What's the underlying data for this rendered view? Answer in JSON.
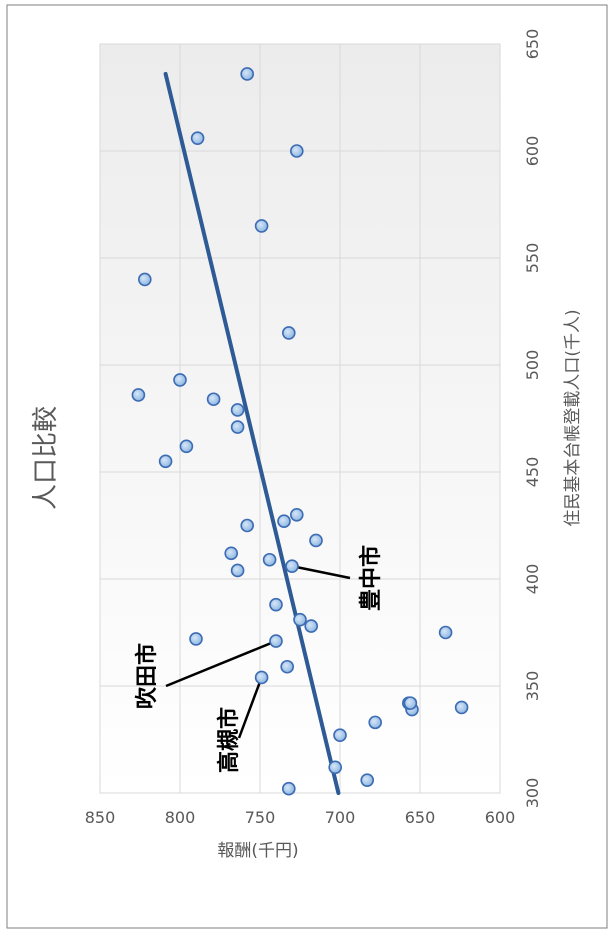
{
  "chart_data": {
    "type": "scatter",
    "title": "人口比較",
    "xlabel": "住民基本台帳登載人口(千人)",
    "ylabel": "報酬(千円)",
    "xlim": [
      300,
      650
    ],
    "ylim": [
      600,
      850
    ],
    "x_ticks": [
      "300",
      "350",
      "400",
      "450",
      "500",
      "550",
      "600",
      "650"
    ],
    "y_ticks": [
      "600",
      "650",
      "700",
      "750",
      "800",
      "850"
    ],
    "grid": true,
    "legend": "none",
    "colors": {
      "trendline": "#2e5b95",
      "marker_fill": "#9dc3e6",
      "marker_edge": "#3d6cb4",
      "grid": "#d9d9d9",
      "text": "#595959"
    },
    "points": [
      {
        "x": 302,
        "y": 732
      },
      {
        "x": 306,
        "y": 683
      },
      {
        "x": 312,
        "y": 703
      },
      {
        "x": 327,
        "y": 700
      },
      {
        "x": 333,
        "y": 678
      },
      {
        "x": 339,
        "y": 655
      },
      {
        "x": 340,
        "y": 624
      },
      {
        "x": 342,
        "y": 657
      },
      {
        "x": 342,
        "y": 656
      },
      {
        "x": 354,
        "y": 749
      },
      {
        "x": 359,
        "y": 733
      },
      {
        "x": 371,
        "y": 740
      },
      {
        "x": 372,
        "y": 790
      },
      {
        "x": 375,
        "y": 634
      },
      {
        "x": 378,
        "y": 718
      },
      {
        "x": 381,
        "y": 725
      },
      {
        "x": 388,
        "y": 740
      },
      {
        "x": 404,
        "y": 764
      },
      {
        "x": 406,
        "y": 730
      },
      {
        "x": 409,
        "y": 744
      },
      {
        "x": 412,
        "y": 768
      },
      {
        "x": 418,
        "y": 715
      },
      {
        "x": 425,
        "y": 758
      },
      {
        "x": 427,
        "y": 735
      },
      {
        "x": 430,
        "y": 727
      },
      {
        "x": 455,
        "y": 809
      },
      {
        "x": 462,
        "y": 796
      },
      {
        "x": 471,
        "y": 764
      },
      {
        "x": 479,
        "y": 764
      },
      {
        "x": 484,
        "y": 779
      },
      {
        "x": 486,
        "y": 826
      },
      {
        "x": 493,
        "y": 800
      },
      {
        "x": 515,
        "y": 732
      },
      {
        "x": 540,
        "y": 822
      },
      {
        "x": 565,
        "y": 749
      },
      {
        "x": 600,
        "y": 727
      },
      {
        "x": 606,
        "y": 789
      },
      {
        "x": 636,
        "y": 758
      }
    ],
    "trendline": {
      "x": [
        300,
        636
      ],
      "y": [
        701,
        809
      ]
    },
    "annotations": [
      {
        "text": "豊中市",
        "x": 406,
        "y": 730
      },
      {
        "text": "吹田市",
        "x": 371,
        "y": 740
      },
      {
        "text": "高槻市",
        "x": 354,
        "y": 749
      }
    ]
  }
}
